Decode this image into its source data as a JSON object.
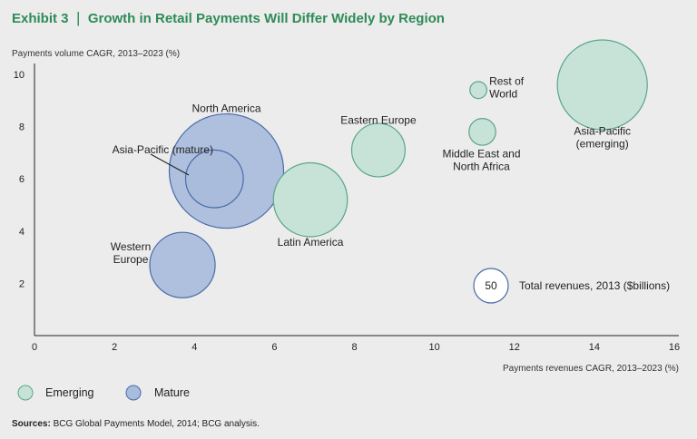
{
  "header": {
    "exhibit_label": "Exhibit 3",
    "title": "Growth in Retail Payments Will Differ Widely by Region"
  },
  "colors": {
    "emerging_fill": "#c7e3d7",
    "emerging_stroke": "#5aa58c",
    "mature_fill": "#a8bcdb",
    "mature_stroke": "#4a6ba8",
    "title": "#2e8b57",
    "axis": "#222222",
    "size_ref_stroke": "#4a6ba8"
  },
  "chart_data": {
    "type": "scatter",
    "subtype": "bubble",
    "ylabel": "Payments volume CAGR, 2013–2023 (%)",
    "xlabel": "Payments revenues CAGR, 2013–2023 (%)",
    "xlim": [
      0,
      16
    ],
    "ylim": [
      0,
      10.5
    ],
    "x_ticks": [
      0,
      2,
      4,
      6,
      8,
      10,
      12,
      14,
      16
    ],
    "y_ticks": [
      2,
      4,
      6,
      8,
      10
    ],
    "grid": false,
    "size_reference": {
      "value": 50,
      "label": "50",
      "caption": "Total revenues, 2013 ($billions)",
      "x": 11.7,
      "y": 1.8
    },
    "series": [
      {
        "name": "Emerging",
        "points": [
          {
            "label": "Asia-Pacific\n(emerging)",
            "x": 14.2,
            "y": 9.6,
            "size": 340
          },
          {
            "label": "Rest of\nWorld",
            "x": 11.1,
            "y": 9.4,
            "size": 12
          },
          {
            "label": "Middle East and\nNorth Africa",
            "x": 11.2,
            "y": 7.8,
            "size": 30
          },
          {
            "label": "Eastern Europe",
            "x": 8.6,
            "y": 7.1,
            "size": 120
          },
          {
            "label": "Latin America",
            "x": 6.9,
            "y": 5.2,
            "size": 230
          }
        ]
      },
      {
        "name": "Mature",
        "points": [
          {
            "label": "North America",
            "x": 4.8,
            "y": 6.3,
            "size": 550
          },
          {
            "label": "Asia-Pacific (mature)",
            "x": 4.5,
            "y": 6.0,
            "size": 140
          },
          {
            "label": "Western\nEurope",
            "x": 3.7,
            "y": 2.7,
            "size": 180
          }
        ]
      }
    ]
  },
  "legend": {
    "items": [
      {
        "label": "Emerging",
        "key": "emerging"
      },
      {
        "label": "Mature",
        "key": "mature"
      }
    ]
  },
  "source": {
    "prefix": "Sources:",
    "text": " BCG Global Payments Model, 2014; BCG analysis."
  }
}
